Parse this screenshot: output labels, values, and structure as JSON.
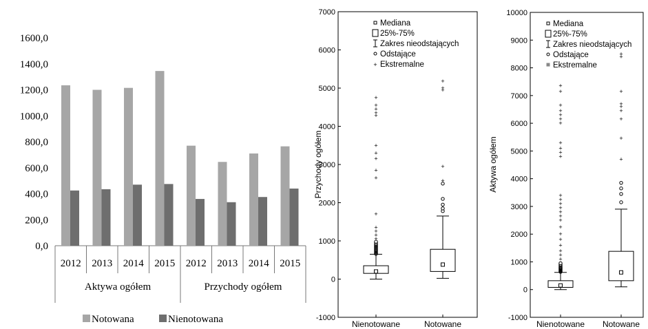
{
  "chart_data": [
    {
      "type": "bar",
      "yticks": [
        "0,0",
        "200,0",
        "400,0",
        "600,0",
        "800,0",
        "1000,0",
        "1200,0",
        "1400,0",
        "1600,0"
      ],
      "ylim": [
        0,
        1600
      ],
      "groups": [
        {
          "label": "Aktywa ogółem",
          "categories": [
            "2012",
            "2013",
            "2014",
            "2015"
          ]
        },
        {
          "label": "Przychody ogółem",
          "categories": [
            "2012",
            "2013",
            "2014",
            "2015"
          ]
        }
      ],
      "series": [
        {
          "name": "Notowana",
          "color": "#a6a6a6",
          "values": [
            1235,
            1200,
            1215,
            1345,
            770,
            645,
            710,
            765
          ]
        },
        {
          "name": "Nienotowana",
          "color": "#6e6e6e",
          "values": [
            425,
            435,
            470,
            475,
            360,
            335,
            375,
            440
          ]
        }
      ],
      "grid": false,
      "legend": "bottom"
    },
    {
      "type": "box",
      "ylabel": "Przychody ogółem",
      "ylim": [
        -1000,
        7000
      ],
      "yticks": [
        "-1000",
        "0",
        "1000",
        "2000",
        "3000",
        "4000",
        "5000",
        "6000",
        "7000"
      ],
      "legend": [
        {
          "icon": "median-square",
          "label": "Mediana"
        },
        {
          "icon": "box",
          "label": "25%-75%"
        },
        {
          "icon": "whisker",
          "label": "Zakres nieodstających"
        },
        {
          "icon": "circle",
          "label": "Odstające"
        },
        {
          "icon": "plus",
          "label": "Ekstremalne"
        }
      ],
      "boxes": [
        {
          "category": "Nienotowane",
          "median": 200,
          "q1": 150,
          "q3": 350,
          "whisker_low": 0,
          "whisker_high": 650,
          "outliers": [
            660,
            680,
            700,
            720,
            740,
            760,
            780,
            800,
            820,
            840,
            860,
            880,
            900,
            920,
            950,
            980
          ],
          "extremes": [
            1050,
            1150,
            1250,
            1350,
            1700,
            2650,
            2850,
            3150,
            3300,
            3500,
            4280,
            4350,
            4450,
            4550,
            4750
          ]
        },
        {
          "category": "Notowane",
          "median": 380,
          "q1": 200,
          "q3": 780,
          "whisker_low": 20,
          "whisker_high": 1650,
          "outliers": [
            1780,
            1850,
            1950,
            2100,
            2500
          ],
          "extremes": [
            2580,
            2950,
            4950,
            5000,
            5180
          ]
        }
      ]
    },
    {
      "type": "box",
      "ylabel": "Aktywa ogółem",
      "ylim": [
        -1000,
        10000
      ],
      "yticks": [
        "-1000",
        "0",
        "1000",
        "2000",
        "3000",
        "4000",
        "5000",
        "6000",
        "7000",
        "8000",
        "9000",
        "10000"
      ],
      "legend": [
        {
          "icon": "median-square",
          "label": "Mediana"
        },
        {
          "icon": "box",
          "label": "25%-75%"
        },
        {
          "icon": "whisker",
          "label": "Zakres nieodstających"
        },
        {
          "icon": "circle",
          "label": "Odstające"
        },
        {
          "icon": "filled-square",
          "label": "Ekstremalne"
        }
      ],
      "boxes": [
        {
          "category": "Nienotowane",
          "median": 150,
          "q1": 80,
          "q3": 320,
          "whisker_low": 0,
          "whisker_high": 620,
          "outliers": [
            640,
            660,
            680,
            700,
            720,
            740,
            760,
            780,
            800,
            820,
            850,
            880,
            910,
            950
          ],
          "extremes": [
            1100,
            1250,
            1400,
            1600,
            1800,
            2000,
            2250,
            2500,
            2650,
            2800,
            2950,
            3100,
            3250,
            3400,
            4800,
            4950,
            5100,
            5300,
            6000,
            6150,
            6300,
            6450,
            6650,
            7150,
            7350
          ]
        },
        {
          "category": "Notowane",
          "median": 620,
          "q1": 320,
          "q3": 1380,
          "whisker_low": 100,
          "whisker_high": 2900,
          "outliers": [
            3150,
            3450,
            3650,
            3850
          ],
          "extremes": [
            4700,
            5450,
            6150,
            6450,
            6600,
            6700,
            7150,
            8400,
            8500
          ]
        }
      ]
    }
  ]
}
